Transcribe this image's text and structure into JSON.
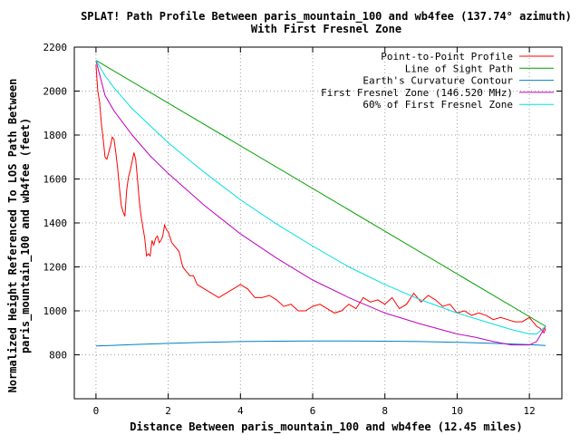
{
  "chart_data": {
    "type": "line",
    "title": "SPLAT! Path Profile Between paris_mountain_100 and wb4fee (137.74° azimuth)",
    "subtitle": "With First Fresnel Zone",
    "xlabel": "Distance Between paris_mountain_100 and wb4fee (12.45 miles)",
    "ylabel": "Normalized Height Referenced To LOS Path Between paris_mountain_100 and wb4fee (feet)",
    "xlim": [
      -0.6,
      12.9
    ],
    "ylim": [
      600,
      2200
    ],
    "xticks": [
      "0",
      "2",
      "4",
      "6",
      "8",
      "10",
      "12"
    ],
    "yticks": [
      "800",
      "1000",
      "1200",
      "1400",
      "1600",
      "1800",
      "2000",
      "2200"
    ],
    "grid": true,
    "legend_position": "top-right",
    "series": [
      {
        "name": "Point-to-Point Profile",
        "color": "#ff0000",
        "x": [
          0.0,
          0.05,
          0.1,
          0.15,
          0.2,
          0.25,
          0.3,
          0.35,
          0.4,
          0.45,
          0.5,
          0.55,
          0.6,
          0.65,
          0.7,
          0.75,
          0.8,
          0.85,
          0.9,
          0.95,
          1.0,
          1.05,
          1.1,
          1.15,
          1.2,
          1.25,
          1.3,
          1.35,
          1.4,
          1.45,
          1.5,
          1.55,
          1.6,
          1.65,
          1.7,
          1.75,
          1.8,
          1.85,
          1.9,
          1.95,
          2.0,
          2.1,
          2.2,
          2.3,
          2.4,
          2.5,
          2.6,
          2.7,
          2.8,
          2.9,
          3.0,
          3.2,
          3.4,
          3.6,
          3.8,
          4.0,
          4.2,
          4.4,
          4.6,
          4.8,
          5.0,
          5.2,
          5.4,
          5.6,
          5.8,
          6.0,
          6.2,
          6.4,
          6.6,
          6.8,
          7.0,
          7.2,
          7.4,
          7.6,
          7.8,
          8.0,
          8.2,
          8.4,
          8.6,
          8.8,
          9.0,
          9.2,
          9.4,
          9.6,
          9.8,
          10.0,
          10.2,
          10.4,
          10.6,
          10.8,
          11.0,
          11.2,
          11.4,
          11.6,
          11.8,
          12.0,
          12.1,
          12.2,
          12.3,
          12.4,
          12.45
        ],
        "y": [
          2120,
          2000,
          1950,
          1850,
          1780,
          1700,
          1690,
          1720,
          1750,
          1790,
          1780,
          1720,
          1650,
          1560,
          1480,
          1450,
          1430,
          1550,
          1610,
          1640,
          1680,
          1720,
          1690,
          1600,
          1500,
          1430,
          1380,
          1330,
          1250,
          1260,
          1250,
          1320,
          1300,
          1330,
          1340,
          1310,
          1320,
          1340,
          1390,
          1370,
          1360,
          1310,
          1290,
          1270,
          1200,
          1180,
          1160,
          1160,
          1120,
          1110,
          1100,
          1080,
          1060,
          1080,
          1100,
          1120,
          1100,
          1060,
          1060,
          1070,
          1050,
          1020,
          1030,
          1000,
          1000,
          1020,
          1030,
          1010,
          990,
          1000,
          1030,
          1010,
          1060,
          1040,
          1050,
          1030,
          1060,
          1010,
          1030,
          1080,
          1040,
          1070,
          1050,
          1020,
          1030,
          990,
          1000,
          980,
          990,
          980,
          960,
          970,
          960,
          950,
          950,
          970,
          950,
          930,
          920,
          900,
          920
        ]
      },
      {
        "name": "Line of Sight Path",
        "color": "#00a000",
        "x": [
          0.0,
          12.45
        ],
        "y": [
          2140,
          930
        ]
      },
      {
        "name": "Earth's Curvature Contour",
        "color": "#0080c0",
        "x": [
          0.0,
          1.0,
          2.0,
          3.0,
          4.0,
          5.0,
          6.0,
          7.0,
          8.0,
          9.0,
          10.0,
          11.0,
          12.0,
          12.45
        ],
        "y": [
          840,
          846,
          852,
          857,
          860,
          862,
          863,
          863,
          862,
          860,
          857,
          852,
          846,
          842
        ]
      },
      {
        "name": "First Fresnel Zone (146.520 MHz)",
        "color": "#c000c0",
        "x": [
          0.0,
          0.25,
          0.5,
          1.0,
          1.5,
          2.0,
          3.0,
          4.0,
          5.0,
          6.0,
          7.0,
          8.0,
          9.0,
          10.0,
          10.5,
          11.0,
          11.5,
          12.0,
          12.2,
          12.45
        ],
        "y": [
          2140,
          1980,
          1910,
          1800,
          1705,
          1625,
          1480,
          1350,
          1240,
          1140,
          1060,
          990,
          940,
          895,
          880,
          860,
          845,
          845,
          860,
          930
        ]
      },
      {
        "name": "60% of First Fresnel Zone",
        "color": "#00e0e0",
        "x": [
          0.0,
          0.25,
          0.5,
          1.0,
          2.0,
          3.0,
          4.0,
          5.0,
          6.0,
          7.0,
          8.0,
          9.0,
          10.0,
          11.0,
          11.5,
          12.0,
          12.2,
          12.45
        ],
        "y": [
          2140,
          2070,
          2015,
          1920,
          1765,
          1630,
          1505,
          1395,
          1295,
          1200,
          1120,
          1050,
          990,
          940,
          915,
          895,
          895,
          930
        ]
      }
    ]
  }
}
